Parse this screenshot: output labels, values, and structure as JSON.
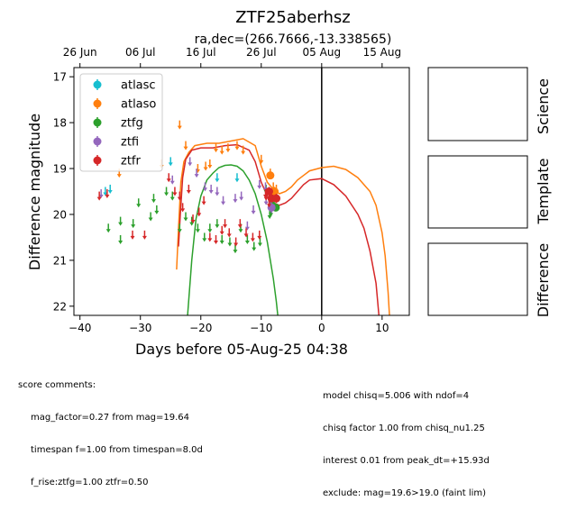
{
  "header": {
    "title": "ZTF25aberhsz",
    "subtitle": "ra,dec=(266.7666,-13.338565)"
  },
  "chart_data": {
    "type": "scatter",
    "title": "ZTF25aberhsz",
    "subtitle": "ra,dec=(266.7666,-13.338565)",
    "xlabel": "Days before 05-Aug-25 04:38",
    "ylabel": "Difference magnitude",
    "xlim": [
      -41,
      14.5
    ],
    "ylim": [
      22.2,
      16.8
    ],
    "y_inverted": true,
    "xticks": [
      -40,
      -30,
      -20,
      -10,
      0,
      10
    ],
    "xtick_labels": [
      "−40",
      "−30",
      "−20",
      "−10",
      "0",
      "10"
    ],
    "yticks": [
      17,
      18,
      19,
      20,
      21,
      22
    ],
    "ytick_labels": [
      "17",
      "18",
      "19",
      "20",
      "21",
      "22"
    ],
    "top_axis_ticks": [
      -40,
      -30,
      -20,
      -10,
      0,
      10
    ],
    "top_axis_labels": [
      "26 Jun",
      "06 Jul",
      "16 Jul",
      "26 Jul",
      "05 Aug",
      "15 Aug"
    ],
    "vline_x": 0,
    "grid": false,
    "legend_position": "top-left",
    "series": [
      {
        "name": "atlasc",
        "color": "#17becf",
        "upper_limits": [
          [
            -35.8,
            19.5
          ],
          [
            -35,
            19.45
          ],
          [
            -25,
            18.85
          ],
          [
            -17.3,
            19.2
          ],
          [
            -14,
            19.2
          ]
        ],
        "detections": []
      },
      {
        "name": "atlaso",
        "color": "#ff7f0e",
        "upper_limits": [
          [
            -33.5,
            19.1
          ],
          [
            -26.5,
            18.9
          ],
          [
            -23.5,
            18.05
          ],
          [
            -22.5,
            18.5
          ],
          [
            -20.5,
            19
          ],
          [
            -19.2,
            18.95
          ],
          [
            -18.5,
            18.9
          ],
          [
            -17.5,
            18.55
          ],
          [
            -16.5,
            18.6
          ],
          [
            -15.5,
            18.55
          ],
          [
            -14,
            18.5
          ],
          [
            -13,
            18.6
          ],
          [
            -10,
            18.8
          ],
          [
            -8.5,
            19.1
          ],
          [
            -8,
            19.4
          ],
          [
            -7.5,
            19.45
          ]
        ],
        "detections": [
          [
            -8.5,
            19.15,
            0.08
          ],
          [
            -7.8,
            19.5,
            0.1
          ]
        ]
      },
      {
        "name": "ztfg",
        "color": "#2ca02c",
        "upper_limits": [
          [
            -35.3,
            20.3
          ],
          [
            -33.3,
            20.15
          ],
          [
            -33.3,
            20.55
          ],
          [
            -31.2,
            20.2
          ],
          [
            -30.3,
            19.75
          ],
          [
            -28.3,
            20.05
          ],
          [
            -27.8,
            19.65
          ],
          [
            -27.3,
            19.9
          ],
          [
            -25.7,
            19.5
          ],
          [
            -24.7,
            19.6
          ],
          [
            -23.5,
            20.3
          ],
          [
            -22.5,
            20.05
          ],
          [
            -21.5,
            20.15
          ],
          [
            -20.5,
            20.3
          ],
          [
            -19.4,
            20.5
          ],
          [
            -18.5,
            20.3
          ],
          [
            -17.3,
            20.2
          ],
          [
            -16.5,
            20.55
          ],
          [
            -15.2,
            20.6
          ],
          [
            -14.3,
            20.75
          ],
          [
            -13.4,
            20.3
          ],
          [
            -12.3,
            20.55
          ],
          [
            -11.2,
            20.7
          ],
          [
            -10.2,
            20.6
          ],
          [
            -9.2,
            19.45
          ],
          [
            -8.6,
            20
          ],
          [
            -8.4,
            19.95
          ]
        ],
        "detections": [
          [
            -8.2,
            19.8,
            0.1
          ],
          [
            -7.6,
            19.85,
            0.08
          ]
        ]
      },
      {
        "name": "ztfi",
        "color": "#9467bd",
        "upper_limits": [
          [
            -36.5,
            19.55
          ],
          [
            -24.7,
            19.25
          ],
          [
            -21.8,
            18.85
          ],
          [
            -20.7,
            19.1
          ],
          [
            -19.3,
            19.4
          ],
          [
            -18.3,
            19.45
          ],
          [
            -17.3,
            19.5
          ],
          [
            -16.3,
            19.7
          ],
          [
            -14.3,
            19.65
          ],
          [
            -13.3,
            19.6
          ],
          [
            -12.3,
            20.25
          ],
          [
            -11.3,
            19.9
          ],
          [
            -10.3,
            19.35
          ],
          [
            -9.3,
            19.4
          ],
          [
            -9.2,
            19.7
          ],
          [
            -8.6,
            19.75
          ]
        ],
        "detections": [
          [
            -8.3,
            19.85,
            0.12
          ]
        ]
      },
      {
        "name": "ztfr",
        "color": "#d62728",
        "upper_limits": [
          [
            -36.8,
            19.6
          ],
          [
            -35.5,
            19.55
          ],
          [
            -31.3,
            20.45
          ],
          [
            -29.3,
            20.45
          ],
          [
            -25.3,
            19.2
          ],
          [
            -24.3,
            19.5
          ],
          [
            -23.5,
            19.6
          ],
          [
            -23,
            19.85
          ],
          [
            -22,
            19.45
          ],
          [
            -21.3,
            20.1
          ],
          [
            -20.3,
            19.95
          ],
          [
            -19.5,
            19.7
          ],
          [
            -18.5,
            20.5
          ],
          [
            -17.5,
            20.55
          ],
          [
            -16.5,
            20.35
          ],
          [
            -16,
            20.2
          ],
          [
            -15.3,
            20.4
          ],
          [
            -14.2,
            20.6
          ],
          [
            -13.5,
            20.2
          ],
          [
            -12.5,
            20.4
          ],
          [
            -11.4,
            20.5
          ],
          [
            -10.3,
            20.45
          ],
          [
            -9.3,
            19.55
          ],
          [
            -9.2,
            19.6
          ],
          [
            -8.7,
            19.75
          ]
        ],
        "detections": [
          [
            -8.7,
            19.5,
            0.1
          ],
          [
            -8.3,
            19.65,
            0.08
          ],
          [
            -7.5,
            19.65,
            0.1
          ]
        ]
      }
    ],
    "model_curves": [
      {
        "name": "ztfg",
        "color": "#2ca02c",
        "points": [
          [
            -22.3,
            22.4
          ],
          [
            -21.5,
            21
          ],
          [
            -20.8,
            20.1
          ],
          [
            -20,
            19.6
          ],
          [
            -19,
            19.25
          ],
          [
            -18,
            19.1
          ],
          [
            -17,
            18.98
          ],
          [
            -16,
            18.93
          ],
          [
            -15,
            18.92
          ],
          [
            -14,
            18.95
          ],
          [
            -13,
            19.05
          ],
          [
            -12,
            19.25
          ],
          [
            -11,
            19.55
          ],
          [
            -10,
            20
          ],
          [
            -9,
            20.6
          ],
          [
            -8,
            21.4
          ],
          [
            -7.5,
            21.9
          ],
          [
            -7.1,
            22.4
          ]
        ]
      },
      {
        "name": "atlaso",
        "color": "#ff7f0e",
        "points": [
          [
            -24,
            21.2
          ],
          [
            -23.7,
            20.3
          ],
          [
            -23.3,
            19.3
          ],
          [
            -22.8,
            18.85
          ],
          [
            -22,
            18.65
          ],
          [
            -21,
            18.5
          ],
          [
            -19,
            18.45
          ],
          [
            -17,
            18.45
          ],
          [
            -15,
            18.4
          ],
          [
            -13,
            18.35
          ],
          [
            -11,
            18.5
          ],
          [
            -10,
            18.95
          ],
          [
            -9,
            19.3
          ],
          [
            -8,
            19.45
          ],
          [
            -7,
            19.55
          ],
          [
            -6,
            19.5
          ],
          [
            -5,
            19.4
          ],
          [
            -4,
            19.25
          ],
          [
            -3,
            19.15
          ],
          [
            -2,
            19.05
          ],
          [
            0,
            18.98
          ],
          [
            2,
            18.95
          ],
          [
            4,
            19.02
          ],
          [
            6,
            19.2
          ],
          [
            8,
            19.5
          ],
          [
            9,
            19.8
          ],
          [
            10,
            20.4
          ],
          [
            10.5,
            20.9
          ],
          [
            11,
            21.7
          ],
          [
            11.3,
            22.4
          ]
        ]
      },
      {
        "name": "ztfr",
        "color": "#d62728",
        "points": [
          [
            -23.7,
            20.7
          ],
          [
            -23.4,
            20
          ],
          [
            -23,
            19.2
          ],
          [
            -22.5,
            18.8
          ],
          [
            -21.5,
            18.6
          ],
          [
            -20,
            18.55
          ],
          [
            -18,
            18.55
          ],
          [
            -16,
            18.5
          ],
          [
            -14,
            18.48
          ],
          [
            -12,
            18.6
          ],
          [
            -11,
            18.85
          ],
          [
            -10,
            19.3
          ],
          [
            -9,
            19.6
          ],
          [
            -8,
            19.75
          ],
          [
            -7,
            19.8
          ],
          [
            -6,
            19.75
          ],
          [
            -5,
            19.65
          ],
          [
            -4,
            19.5
          ],
          [
            -3,
            19.35
          ],
          [
            -2,
            19.25
          ],
          [
            0,
            19.22
          ],
          [
            2,
            19.35
          ],
          [
            4,
            19.6
          ],
          [
            6,
            20
          ],
          [
            7,
            20.3
          ],
          [
            8,
            20.8
          ],
          [
            9,
            21.5
          ],
          [
            9.6,
            22.4
          ]
        ]
      }
    ],
    "side_panels": [
      "Science",
      "Template",
      "Difference"
    ]
  },
  "comments": {
    "left_header": "score comments:",
    "left_lines": [
      "mag_factor=0.27 from mag=19.64",
      "timespan f=1.00 from timespan=8.0d",
      "f_rise:ztfg=1.00 ztfr=0.50"
    ],
    "right_lines": [
      "model chisq=5.006 with ndof=4",
      "chisq factor 1.00 from chisq_nu1.25",
      "interest 0.01 from peak_dt=+15.93d",
      "exclude: mag=19.6>19.0 (faint lim)"
    ]
  }
}
